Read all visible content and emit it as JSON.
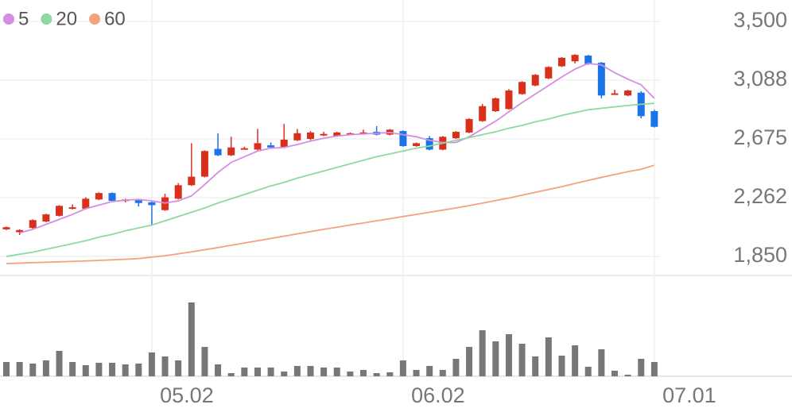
{
  "chart_data": {
    "type": "candlestick",
    "categories": [
      null,
      null,
      null,
      null,
      null,
      null,
      null,
      null,
      null,
      null,
      null,
      "05.02",
      null,
      null,
      null,
      null,
      null,
      null,
      null,
      null,
      null,
      null,
      null,
      null,
      null,
      null,
      null,
      null,
      null,
      null,
      "06.02",
      null,
      null,
      null,
      null,
      null,
      null,
      null,
      null,
      null,
      null,
      null,
      null,
      null,
      null,
      null,
      null,
      null,
      null,
      "07.01"
    ],
    "open": [
      2040,
      2020,
      2050,
      2095,
      2135,
      2185,
      2185,
      2250,
      2295,
      2240,
      2245,
      2230,
      2175,
      2255,
      2350,
      2410,
      2605,
      2560,
      2605,
      2600,
      2630,
      2615,
      2665,
      2675,
      2700,
      2695,
      2710,
      2715,
      2725,
      2705,
      2730,
      2625,
      2680,
      2600,
      2680,
      2720,
      2800,
      2870,
      2885,
      2990,
      3050,
      3100,
      3185,
      3220,
      3260,
      3210,
      2990,
      2980,
      3000,
      2870
    ],
    "high": [
      2060,
      2040,
      2110,
      2150,
      2210,
      2215,
      2265,
      2300,
      2300,
      2255,
      2255,
      2235,
      2290,
      2365,
      2645,
      2595,
      2715,
      2690,
      2620,
      2745,
      2650,
      2780,
      2745,
      2730,
      2725,
      2725,
      2720,
      2740,
      2765,
      2745,
      2735,
      2650,
      2695,
      2695,
      2730,
      2820,
      2920,
      2965,
      3025,
      3080,
      3130,
      3185,
      3250,
      3270,
      3265,
      3215,
      3020,
      3020,
      3010,
      2880
    ],
    "low": [
      2035,
      2000,
      2045,
      2090,
      2130,
      2180,
      2180,
      2245,
      2235,
      2230,
      2200,
      2065,
      2170,
      2250,
      2345,
      2405,
      2555,
      2555,
      2600,
      2595,
      2605,
      2610,
      2660,
      2665,
      2695,
      2690,
      2705,
      2705,
      2700,
      2700,
      2620,
      2620,
      2595,
      2595,
      2675,
      2715,
      2795,
      2865,
      2880,
      2985,
      3045,
      3095,
      3180,
      3205,
      3195,
      2960,
      2985,
      2975,
      2820,
      2755
    ],
    "close": [
      2055,
      2035,
      2105,
      2145,
      2205,
      2195,
      2255,
      2295,
      2240,
      2250,
      2225,
      2210,
      2265,
      2350,
      2410,
      2590,
      2560,
      2615,
      2610,
      2645,
      2615,
      2670,
      2715,
      2720,
      2710,
      2720,
      2715,
      2720,
      2705,
      2740,
      2625,
      2645,
      2600,
      2690,
      2725,
      2815,
      2905,
      2960,
      3015,
      3075,
      3125,
      3180,
      3245,
      3265,
      3200,
      2980,
      2995,
      3015,
      2835,
      2760
    ],
    "up_color": "#d9301c",
    "down_color": "#1a73e8",
    "series": [
      {
        "name": "5",
        "color": "#d48ee2",
        "values": [
          null,
          2015,
          2040,
          2075,
          2110,
          2145,
          2185,
          2210,
          2235,
          2245,
          2250,
          2240,
          2225,
          2240,
          2275,
          2355,
          2440,
          2510,
          2550,
          2590,
          2610,
          2615,
          2635,
          2660,
          2680,
          2695,
          2705,
          2710,
          2715,
          2720,
          2705,
          2690,
          2665,
          2650,
          2650,
          2690,
          2745,
          2800,
          2865,
          2930,
          2990,
          3050,
          3110,
          3165,
          3205,
          3195,
          3140,
          3095,
          3055,
          2960
        ]
      },
      {
        "name": "20",
        "color": "#8fd8a0",
        "values": [
          1850,
          1865,
          1880,
          1900,
          1920,
          1940,
          1960,
          1985,
          2005,
          2030,
          2050,
          2070,
          2100,
          2130,
          2160,
          2190,
          2225,
          2255,
          2285,
          2315,
          2345,
          2370,
          2400,
          2425,
          2450,
          2475,
          2500,
          2525,
          2550,
          2570,
          2590,
          2610,
          2625,
          2645,
          2665,
          2685,
          2705,
          2725,
          2750,
          2770,
          2795,
          2815,
          2840,
          2860,
          2880,
          2890,
          2900,
          2910,
          2918,
          2925
        ]
      },
      {
        "name": "60",
        "color": "#f4a27e",
        "values": [
          1800,
          1803,
          1806,
          1809,
          1812,
          1815,
          1818,
          1822,
          1826,
          1830,
          1835,
          1845,
          1855,
          1868,
          1882,
          1897,
          1912,
          1928,
          1944,
          1960,
          1976,
          1992,
          2008,
          2024,
          2040,
          2055,
          2070,
          2085,
          2100,
          2115,
          2130,
          2145,
          2160,
          2175,
          2190,
          2207,
          2224,
          2242,
          2260,
          2280,
          2300,
          2320,
          2340,
          2362,
          2384,
          2405,
          2425,
          2445,
          2462,
          2490
        ]
      }
    ],
    "volume": {
      "color": "#777777",
      "values": [
        18,
        18,
        16,
        20,
        32,
        18,
        14,
        17,
        17,
        15,
        16,
        30,
        25,
        20,
        93,
        37,
        15,
        4,
        11,
        11,
        11,
        6,
        13,
        13,
        11,
        11,
        6,
        8,
        4,
        5,
        20,
        8,
        13,
        8,
        22,
        37,
        58,
        44,
        53,
        41,
        25,
        49,
        26,
        39,
        12,
        34,
        7,
        2,
        22,
        18
      ]
    },
    "ylim": [
      1850,
      3500
    ],
    "yticks": [
      {
        "value": 1850,
        "label": "1,850"
      },
      {
        "value": 2262,
        "label": "2,262"
      },
      {
        "value": 2675,
        "label": "2,675"
      },
      {
        "value": 3088,
        "label": "3,088"
      },
      {
        "value": 3500,
        "label": "3,500"
      }
    ],
    "grid": true
  }
}
